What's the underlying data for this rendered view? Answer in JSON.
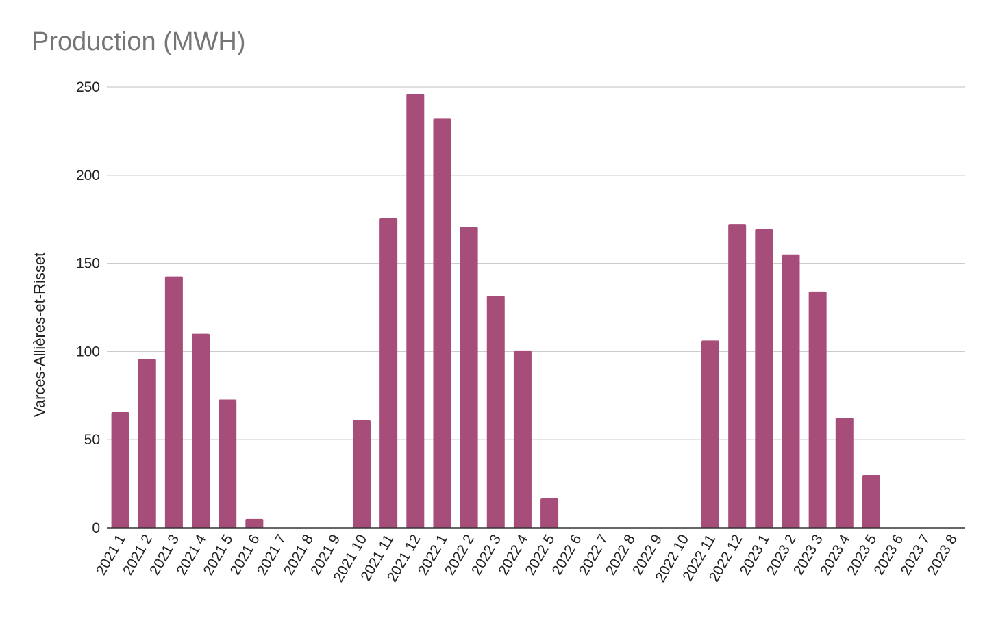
{
  "chart_data": {
    "type": "bar",
    "title": "Production (MWH)",
    "xlabel": "",
    "ylabel": "Varces-Allières-et-Risset",
    "ylim": [
      0,
      250
    ],
    "yticks": [
      0,
      50,
      100,
      150,
      200,
      250
    ],
    "grid": true,
    "bar_color": "#a64d79",
    "categories": [
      "2021 1",
      "2021 2",
      "2021 3",
      "2021 4",
      "2021 5",
      "2021 6",
      "2021 7",
      "2021 8",
      "2021 9",
      "2021 10",
      "2021 11",
      "2021 12",
      "2022 1",
      "2022 2",
      "2022 3",
      "2022 4",
      "2022 5",
      "2022 6",
      "2022 7",
      "2022 8",
      "2022 9",
      "2022 10",
      "2022 11",
      "2022 12",
      "2023 1",
      "2023 2",
      "2023 3",
      "2023 4",
      "2023 5",
      "2023 6",
      "2023 7",
      "2023 8"
    ],
    "values": [
      65.6,
      95.8,
      142.6,
      110,
      72.8,
      5.1,
      0,
      0,
      0,
      61,
      175.5,
      246,
      232,
      170.7,
      131.5,
      100.6,
      16.7,
      0,
      0,
      0,
      0,
      0,
      106.2,
      172.3,
      169.3,
      155,
      134,
      62.5,
      29.9,
      0,
      0,
      0
    ]
  }
}
